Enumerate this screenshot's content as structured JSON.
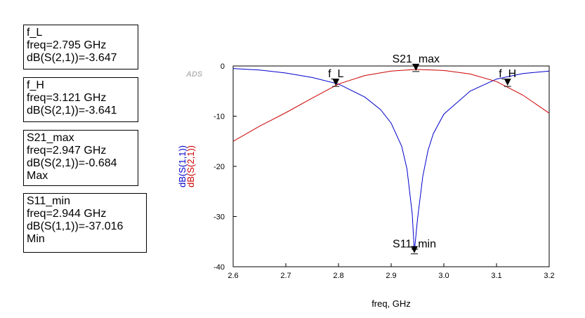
{
  "watermark": "ADS",
  "markers": [
    {
      "name": "f_L",
      "freq_text": "freq=2.795 GHz",
      "value_text": "dB(S(2,1))=-3.647",
      "mode": ""
    },
    {
      "name": "f_H",
      "freq_text": "freq=3.121 GHz",
      "value_text": "dB(S(2,1))=-3.641",
      "mode": ""
    },
    {
      "name": "S21_max",
      "freq_text": "freq=2.947 GHz",
      "value_text": "dB(S(2,1))=-0.684",
      "mode": "Max"
    },
    {
      "name": "S11_min",
      "freq_text": "freq=2.944 GHz",
      "value_text": "dB(S(1,1))=-37.016",
      "mode": "Min"
    }
  ],
  "chart_data": {
    "type": "line",
    "xlabel": "freq, GHz",
    "ylabel_series": [
      "dB(S(1,1))",
      "dB(S(2,1))"
    ],
    "xlim": [
      2.6,
      3.2
    ],
    "ylim": [
      -40,
      0
    ],
    "x_ticks": [
      2.6,
      2.7,
      2.8,
      2.9,
      3.0,
      3.1,
      3.2
    ],
    "x_tick_labels": [
      "2.6",
      "2.7",
      "2.8",
      "2.9",
      "3.0",
      "3.1",
      "3.2"
    ],
    "y_ticks": [
      0,
      -10,
      -20,
      -30,
      -40
    ],
    "y_tick_labels": [
      "0",
      "-10",
      "-20",
      "-30",
      "-40"
    ],
    "grid": false,
    "series": [
      {
        "name": "dB(S(1,1))",
        "color": "#0000cc",
        "x": [
          2.6,
          2.65,
          2.7,
          2.75,
          2.8,
          2.85,
          2.88,
          2.9,
          2.92,
          2.93,
          2.94,
          2.944,
          2.95,
          2.96,
          2.97,
          2.98,
          3.0,
          3.05,
          3.1,
          3.15,
          3.2
        ],
        "y": [
          -0.5,
          -0.8,
          -1.4,
          -2.3,
          -3.6,
          -6.2,
          -8.7,
          -11.4,
          -16.0,
          -20.5,
          -29.5,
          -37.016,
          -30.5,
          -22.0,
          -16.8,
          -13.5,
          -9.6,
          -5.0,
          -2.6,
          -1.5,
          -1.0
        ]
      },
      {
        "name": "dB(S(2,1))",
        "color": "#cc0000",
        "x": [
          2.6,
          2.65,
          2.7,
          2.75,
          2.8,
          2.85,
          2.9,
          2.947,
          3.0,
          3.05,
          3.1,
          3.15,
          3.2
        ],
        "y": [
          -15.0,
          -12.0,
          -9.3,
          -6.4,
          -3.6,
          -1.9,
          -1.0,
          -0.684,
          -0.9,
          -1.6,
          -3.1,
          -5.8,
          -9.4
        ]
      }
    ],
    "annotations": [
      {
        "label": "f_L",
        "x": 2.795,
        "y": -3.647
      },
      {
        "label": "f_H",
        "x": 3.121,
        "y": -3.641
      },
      {
        "label": "S21_max",
        "x": 2.947,
        "y": -0.684
      },
      {
        "label": "S11_min",
        "x": 2.944,
        "y": -37.016
      }
    ]
  }
}
